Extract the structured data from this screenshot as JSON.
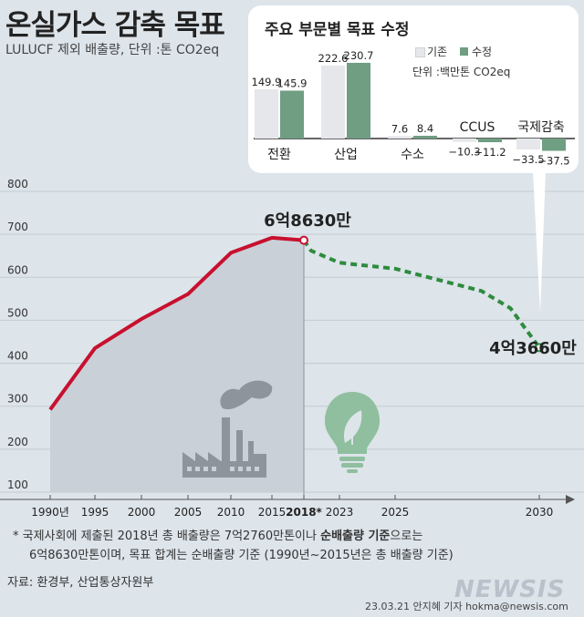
{
  "title": "온실가스 감축 목표",
  "subtitle": "LULUCF 제외 배출량, 단위 :톤 CO2eq",
  "chart_data": [
    {
      "type": "line",
      "y_ticks": [
        "800",
        "700",
        "600",
        "500",
        "400",
        "300",
        "200",
        "100"
      ],
      "ylim": [
        100,
        800
      ],
      "x_ticks": [
        "1990년",
        "1995",
        "2000",
        "2005",
        "2010",
        "2015",
        "2018*",
        "2023",
        "2025",
        "2030"
      ],
      "series": [
        {
          "style": "solid",
          "color": "#c8102e",
          "points": [
            {
              "x": 1990,
              "y": 292
            },
            {
              "x": 1995,
              "y": 435
            },
            {
              "x": 2000,
              "y": 503
            },
            {
              "x": 2005,
              "y": 561
            },
            {
              "x": 2010,
              "y": 657
            },
            {
              "x": 2015,
              "y": 692
            },
            {
              "x": 2018,
              "y": 686.3
            }
          ]
        },
        {
          "style": "dashed",
          "color": "#2e8b3e",
          "points": [
            {
              "x": 2018,
              "y": 686.3
            },
            {
              "x": 2019,
              "y": 662
            },
            {
              "x": 2023,
              "y": 634
            },
            {
              "x": 2025,
              "y": 620
            },
            {
              "x": 2028,
              "y": 568
            },
            {
              "x": 2029,
              "y": 528
            },
            {
              "x": 2030,
              "y": 436.6
            }
          ]
        }
      ],
      "annotations": {
        "peak_label": "6억8630만",
        "end_label": "4억3660만"
      }
    },
    {
      "type": "bar",
      "title": "주요 부문별 목표 수정",
      "unit_label": "단위 :백만톤 CO2eq",
      "legend": [
        {
          "name": "기존",
          "color": "#e6e7ea"
        },
        {
          "name": "수정",
          "color": "#6f9e82"
        }
      ],
      "categories": [
        "전환",
        "산업",
        "수소",
        "CCUS",
        "국제감축"
      ],
      "series": [
        {
          "name": "기존",
          "values": [
            149.9,
            222.6,
            7.6,
            -10.3,
            -33.5
          ],
          "labels": [
            "149.9",
            "222.6",
            "7.6",
            "−10.3",
            "−33.5"
          ]
        },
        {
          "name": "수정",
          "values": [
            145.9,
            230.7,
            8.4,
            -11.2,
            -37.5
          ],
          "labels": [
            "145.9",
            "230.7",
            "8.4",
            "−11.2",
            "−37.5"
          ]
        }
      ]
    }
  ],
  "footnote": {
    "line1_a": "* 국제사회에 제출된 2018년 총 배출량은 7억2760만톤이나 ",
    "line1_b": "순배출량 기준",
    "line1_c": "으로는",
    "line2": "6억8630만톤이며, 목표 합계는 순배출량 기준 (1990년~2015년은 총 배출량 기준)"
  },
  "source": "자료: 환경부, 산업통상자원부",
  "watermark": "NEWSIS",
  "credit": "23.03.21 안지혜 기자  hokma@newsis.com"
}
